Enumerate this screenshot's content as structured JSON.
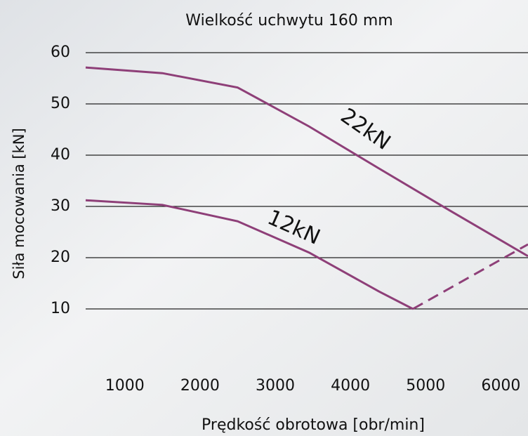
{
  "chart_data": {
    "type": "line",
    "title": "Wielkość uchwytu 160 mm",
    "x_label": "Prędkość obrotowa [obr/min]",
    "y_label": "Siła mocowania [kN]",
    "xlim": [
      480,
      6360
    ],
    "xticks": [
      1000,
      2000,
      3000,
      4000,
      5000,
      6000
    ],
    "ylim": [
      0,
      60
    ],
    "yticks": [
      10,
      20,
      30,
      40,
      50,
      60
    ],
    "grid": true,
    "series": [
      {
        "name": "22kN",
        "color": "#8e3f78",
        "x": [
          480,
          1500,
          2500,
          3450,
          4380,
          5320,
          6360
        ],
        "values": [
          57.1,
          56.0,
          53.2,
          45.6,
          37.4,
          29.2,
          20.3
        ]
      },
      {
        "name": "12kN",
        "color": "#8e3f78",
        "x": [
          480,
          1500,
          2500,
          3450,
          4380,
          4830
        ],
        "values": [
          31.2,
          30.3,
          27.1,
          21.0,
          13.4,
          10.0
        ]
      },
      {
        "color": "#8e3f78",
        "dashed": true,
        "x": [
          4830,
          6360
        ],
        "values": [
          10.0,
          22.6
        ]
      }
    ]
  }
}
